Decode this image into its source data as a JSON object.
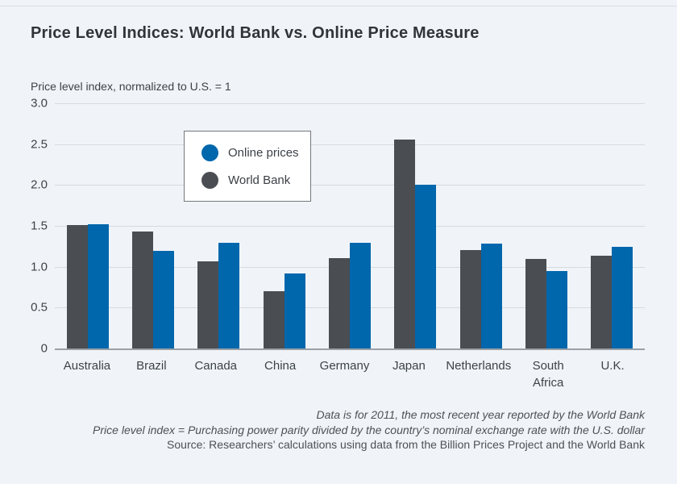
{
  "title": "Price Level Indices: World Bank vs. Online Price Measure",
  "subtitle": "Price level index, normalized to U.S. = 1",
  "colors": {
    "background": "#f0f4f8",
    "online": "#0067ac",
    "world_bank": "#4a4d52",
    "gridline": "#d6dbe0",
    "baseline": "#9aa1a8",
    "text": "#3c434a"
  },
  "legend": {
    "items": [
      {
        "label": "Online prices",
        "color_key": "online"
      },
      {
        "label": "World Bank",
        "color_key": "world_bank"
      }
    ]
  },
  "footnotes": [
    {
      "text": "Data is for 2011, the most recent year reported by the World Bank",
      "italic": true
    },
    {
      "text": "Price level index = Purchasing power parity divided by the country’s nominal exchange rate with the U.S. dollar",
      "italic": true
    },
    {
      "text": "Source: Researchers’ calculations using data from the Billion Prices Project and the World Bank",
      "italic": false
    }
  ],
  "chart_data": {
    "type": "bar",
    "title": "Price Level Indices: World Bank vs. Online Price Measure",
    "ylabel": "Price level index, normalized to U.S. = 1",
    "xlabel": "",
    "categories": [
      "Australia",
      "Brazil",
      "Canada",
      "China",
      "Germany",
      "Japan",
      "Netherlands",
      "South Africa",
      "U.K."
    ],
    "series": [
      {
        "name": "World Bank",
        "color": "#4a4d52",
        "values": [
          1.52,
          1.44,
          1.08,
          0.71,
          1.12,
          2.57,
          1.21,
          1.11,
          1.14
        ]
      },
      {
        "name": "Online prices",
        "color": "#0067ac",
        "values": [
          1.53,
          1.2,
          1.3,
          0.93,
          1.3,
          2.01,
          1.29,
          0.96,
          1.25
        ]
      }
    ],
    "ylim": [
      0,
      3.0
    ],
    "yticks": [
      0,
      0.5,
      1.0,
      1.5,
      2.0,
      2.5,
      3.0
    ],
    "ytick_labels": [
      "0",
      "0.5",
      "1.0",
      "1.5",
      "2.0",
      "2.5",
      "3.0"
    ],
    "grid": true,
    "legend_position": "upper-left-inside"
  }
}
